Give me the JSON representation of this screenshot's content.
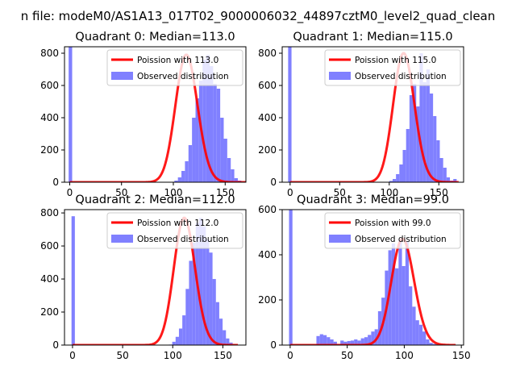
{
  "figure_title": "n file: modeM0/AS1A13_017T02_9000006032_44897cztM0_level2_quad_clean",
  "colors": {
    "observed": "#8080ff",
    "poisson": "#ff0000"
  },
  "chart_data": [
    {
      "type": "bar",
      "title": "Quadrant 0: Median=113.0",
      "legend": {
        "placement": "top-right",
        "entries": [
          "Poission with 113.0",
          "Observed distribution"
        ]
      },
      "xlim": [
        -5,
        170
      ],
      "ylim": [
        0,
        840
      ],
      "xticks": [
        0,
        50,
        100,
        150
      ],
      "yticks": [
        0,
        200,
        400,
        600,
        800
      ],
      "median": 113.0,
      "poisson_max_x": 170,
      "bins": {
        "start": -1,
        "width": 3.4,
        "values": [
          840,
          0,
          0,
          0,
          0,
          0,
          0,
          0,
          0,
          0,
          0,
          0,
          0,
          0,
          0,
          0,
          0,
          0,
          0,
          0,
          0,
          0,
          0,
          0,
          0,
          0,
          0,
          0,
          0,
          2,
          10,
          30,
          70,
          130,
          230,
          400,
          520,
          630,
          760,
          790,
          720,
          610,
          580,
          400,
          270,
          150,
          80,
          25,
          10,
          0,
          0
        ]
      }
    },
    {
      "type": "bar",
      "title": "Quadrant 1: Median=115.0",
      "legend": {
        "placement": "top-right",
        "entries": [
          "Poission with 115.0",
          "Observed distribution"
        ]
      },
      "xlim": [
        -8,
        175
      ],
      "ylim": [
        0,
        840
      ],
      "xticks": [
        0,
        50,
        100,
        150
      ],
      "yticks": [
        0,
        200,
        400,
        600,
        800
      ],
      "median": 115.0,
      "poisson_max_x": 170,
      "bins": {
        "start": -2,
        "width": 3.4,
        "values": [
          840,
          0,
          0,
          0,
          0,
          0,
          0,
          0,
          0,
          0,
          0,
          0,
          0,
          0,
          0,
          0,
          0,
          0,
          0,
          0,
          0,
          0,
          0,
          0,
          0,
          0,
          0,
          0,
          0,
          0,
          8,
          20,
          50,
          110,
          200,
          330,
          540,
          610,
          470,
          800,
          620,
          700,
          550,
          410,
          260,
          150,
          90,
          30,
          10,
          20
        ]
      }
    },
    {
      "type": "bar",
      "title": "Quadrant 2: Median=112.0",
      "legend": {
        "placement": "top-right",
        "entries": [
          "Poission with 112.0",
          "Observed distribution"
        ]
      },
      "xlim": [
        -8,
        173
      ],
      "ylim": [
        0,
        820
      ],
      "xticks": [
        0,
        50,
        100,
        150
      ],
      "yticks": [
        0,
        200,
        400,
        600,
        800
      ],
      "median": 112.0,
      "poisson_max_x": 165,
      "bins": {
        "start": -1,
        "width": 3.35,
        "values": [
          780,
          0,
          0,
          0,
          0,
          0,
          0,
          0,
          0,
          0,
          0,
          0,
          0,
          0,
          0,
          0,
          0,
          0,
          0,
          0,
          0,
          0,
          0,
          0,
          0,
          0,
          0,
          0,
          0,
          3,
          20,
          50,
          100,
          180,
          340,
          510,
          620,
          740,
          770,
          720,
          640,
          560,
          400,
          260,
          160,
          90,
          40,
          15
        ]
      }
    },
    {
      "type": "bar",
      "title": "Quadrant 3: Median=99.0",
      "legend": {
        "placement": "top-right",
        "entries": [
          "Poission with 99.0",
          "Observed distribution"
        ]
      },
      "xlim": [
        -7,
        152
      ],
      "ylim": [
        0,
        600
      ],
      "xticks": [
        0,
        50,
        100,
        150
      ],
      "yticks": [
        0,
        200,
        400,
        600
      ],
      "median": 99.0,
      "poisson_max_x": 145,
      "bins": {
        "start": -1,
        "width": 3.0,
        "values": [
          600,
          0,
          0,
          0,
          0,
          0,
          0,
          0,
          40,
          48,
          44,
          35,
          25,
          15,
          5,
          20,
          15,
          18,
          20,
          25,
          20,
          30,
          35,
          45,
          60,
          70,
          150,
          210,
          330,
          420,
          450,
          340,
          470,
          350,
          460,
          260,
          170,
          110,
          90,
          60,
          25,
          10,
          5,
          2
        ]
      }
    }
  ]
}
